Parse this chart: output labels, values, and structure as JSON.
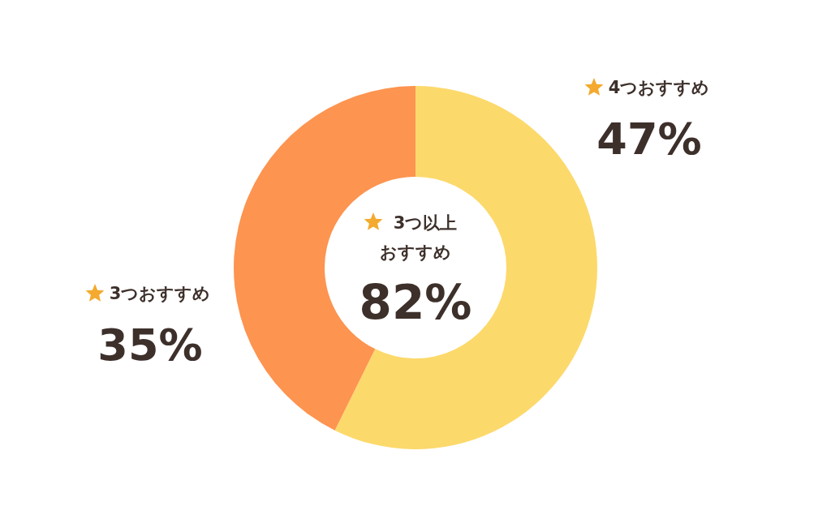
{
  "chart_data": {
    "type": "donut",
    "categories": [
      "4つおすすめ",
      "3つおすすめ"
    ],
    "values": [
      47,
      35
    ],
    "value_labels": [
      "47%",
      "35%"
    ],
    "colors": [
      "#fcd96b",
      "#fd9450"
    ],
    "annotations": [
      "3つ以上",
      "おすすめ",
      "82%"
    ]
  }
}
